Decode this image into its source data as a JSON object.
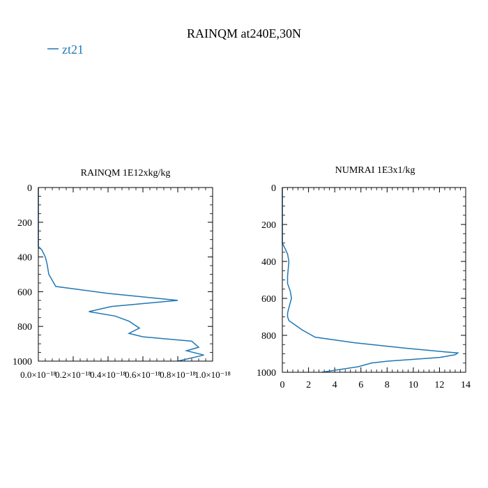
{
  "title": "RAINQM at240E,30N",
  "legend": {
    "entries": [
      "zt21"
    ],
    "color": "#1f77b4"
  },
  "chart_data": [
    {
      "type": "line",
      "title": "RAINQM  1E12xkg/kg",
      "series": [
        {
          "name": "zt21",
          "x": [
            0,
            0,
            2e-20,
            4e-20,
            5e-20,
            6e-20,
            1e-19,
            4e-19,
            8e-19,
            4.2e-19,
            2.9e-19,
            4.4e-19,
            5.2e-19,
            5.8e-19,
            5.2e-19,
            6e-19,
            8.8e-19,
            9.2e-19,
            8.5e-19,
            9.5e-19,
            8e-19
          ],
          "y": [
            0,
            340,
            360,
            400,
            440,
            500,
            570,
            610,
            650,
            685,
            715,
            740,
            770,
            810,
            840,
            860,
            885,
            920,
            940,
            965,
            1000
          ]
        }
      ],
      "xlim": [
        0,
        1e-18
      ],
      "ylim": [
        1000,
        0
      ],
      "xticks": [
        "0.0×10⁻¹⁸",
        "0.2×10⁻¹⁸",
        "0.4×10⁻¹⁸",
        "0.6×10⁻¹⁸",
        "0.8×10⁻¹⁸",
        "1.0×10⁻¹⁸"
      ],
      "xtick_values": [
        0,
        2e-19,
        4e-19,
        6e-19,
        8e-19,
        1e-18
      ],
      "yticks": [
        "0",
        "200",
        "400",
        "600",
        "800",
        "1000"
      ],
      "ytick_values": [
        0,
        200,
        400,
        600,
        800,
        1000
      ],
      "y_inverted": true,
      "grid": false
    },
    {
      "type": "line",
      "title": "NUMRAI  1E3x1/kg",
      "series": [
        {
          "name": "zt21",
          "x": [
            0,
            0,
            0.2,
            0.4,
            0.5,
            0.4,
            0.4,
            0.6,
            0.7,
            0.5,
            0.4,
            0.4,
            0.5,
            0.9,
            1.5,
            2.5,
            5.5,
            9.5,
            12.5,
            13.4,
            13.2,
            12.0,
            8.0,
            6.8,
            5.8,
            3.0
          ],
          "y": [
            0,
            300,
            330,
            360,
            400,
            480,
            520,
            560,
            600,
            650,
            680,
            700,
            720,
            740,
            770,
            810,
            840,
            870,
            890,
            895,
            905,
            920,
            940,
            950,
            970,
            1000
          ]
        }
      ],
      "xlim": [
        0,
        14
      ],
      "ylim": [
        1000,
        0
      ],
      "xticks": [
        "0",
        "2",
        "4",
        "6",
        "8",
        "10",
        "12",
        "14"
      ],
      "xtick_values": [
        0,
        2,
        4,
        6,
        8,
        10,
        12,
        14
      ],
      "yticks": [
        "0",
        "200",
        "400",
        "600",
        "800",
        "1000"
      ],
      "ytick_values": [
        0,
        200,
        400,
        600,
        800,
        1000
      ],
      "y_inverted": true,
      "grid": false
    }
  ]
}
